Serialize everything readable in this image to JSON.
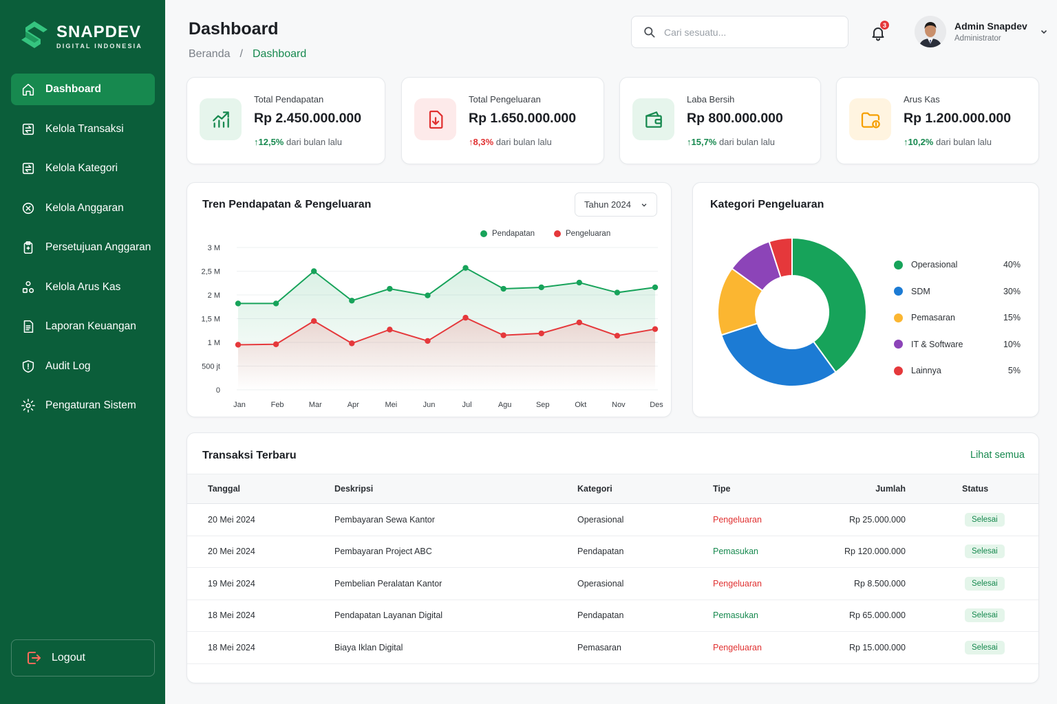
{
  "brand": {
    "name": "SNAPDEV",
    "tagline": "DIGITAL INDONESIA"
  },
  "sidebar": {
    "items": [
      {
        "label": "Dashboard",
        "icon": "home-icon",
        "active": true
      },
      {
        "label": "Kelola Transaksi",
        "icon": "transaction-icon"
      },
      {
        "label": "Kelola Kategori",
        "icon": "category-icon"
      },
      {
        "label": "Kelola Anggaran",
        "icon": "budget-icon"
      },
      {
        "label": "Persetujuan Anggaran",
        "icon": "approval-clipboard-icon"
      },
      {
        "label": "Kelola Arus Kas",
        "icon": "cashflow-shapes-icon"
      },
      {
        "label": "Laporan Keuangan",
        "icon": "report-icon"
      },
      {
        "label": "Audit Log",
        "icon": "shield-icon"
      },
      {
        "label": "Pengaturan Sistem",
        "icon": "gear-icon"
      }
    ],
    "logout_label": "Logout"
  },
  "header": {
    "title": "Dashboard",
    "breadcrumb": [
      "Beranda",
      "/",
      "Dashboard"
    ],
    "search_placeholder": "Cari sesuatu...",
    "notification_count": "3",
    "user_name": "Admin Snapdev",
    "user_role": "Administrator"
  },
  "stats": [
    {
      "label": "Total Pendapatan",
      "value": "Rp 2.450.000.000",
      "change": "12,5%",
      "suffix": "dari bulan lalu",
      "color": "#17894f",
      "bg": "#e6f5ec",
      "icon": "growth-chart-icon"
    },
    {
      "label": "Total Pengeluaran",
      "value": "Rp 1.650.000.000",
      "change": "8,3%",
      "suffix": "dari bulan lalu",
      "color": "#e03131",
      "bg": "#fdeaea",
      "icon": "download-doc-icon"
    },
    {
      "label": "Laba Bersih",
      "value": "Rp 800.000.000",
      "change": "15,7%",
      "suffix": "dari bulan lalu",
      "color": "#17894f",
      "bg": "#e6f5ec",
      "icon": "wallet-icon"
    },
    {
      "label": "Arus Kas",
      "value": "Rp 1.200.000.000",
      "change": "10,2%",
      "suffix": "dari bulan lalu",
      "color": "#f59f00",
      "bg": "#fff4e0",
      "icon": "cash-folder-icon"
    }
  ],
  "trend": {
    "title": "Tren Pendapatan & Pengeluaran",
    "year_select": "Tahun 2024"
  },
  "chart_data": [
    {
      "type": "area",
      "title": "Tren Pendapatan & Pengeluaran",
      "categories": [
        "Jan",
        "Feb",
        "Mar",
        "Apr",
        "Mei",
        "Jun",
        "Jul",
        "Agu",
        "Sep",
        "Okt",
        "Nov",
        "Des"
      ],
      "y_ticks": [
        "0",
        "500 jt",
        "1 M",
        "1,5 M",
        "2 M",
        "2,5 M",
        "3 M"
      ],
      "ylim": [
        0,
        3000000000
      ],
      "grid": true,
      "legend": "top-right",
      "series": [
        {
          "name": "Pendapatan",
          "color": "#17a35a",
          "values": [
            1820000000,
            1820000000,
            2500000000,
            1880000000,
            2130000000,
            1990000000,
            2570000000,
            2130000000,
            2160000000,
            2260000000,
            2050000000,
            2160000000
          ]
        },
        {
          "name": "Pengeluaran",
          "color": "#e5383b",
          "values": [
            950000000,
            960000000,
            1450000000,
            980000000,
            1270000000,
            1030000000,
            1520000000,
            1150000000,
            1190000000,
            1420000000,
            1140000000,
            1280000000
          ]
        }
      ]
    },
    {
      "type": "pie",
      "title": "Kategori Pengeluaran",
      "donut": true,
      "legend": "right",
      "slices": [
        {
          "name": "Operasional",
          "value": 40,
          "label": "40%",
          "color": "#17a35a"
        },
        {
          "name": "SDM",
          "value": 30,
          "label": "30%",
          "color": "#1c7bd4"
        },
        {
          "name": "Pemasaran",
          "value": 15,
          "label": "15%",
          "color": "#fbb631"
        },
        {
          "name": "IT & Software",
          "value": 10,
          "label": "10%",
          "color": "#8c44b8"
        },
        {
          "name": "Lainnya",
          "value": 5,
          "label": "5%",
          "color": "#e5383b"
        }
      ]
    }
  ],
  "transactions": {
    "title": "Transaksi Terbaru",
    "see_all": "Lihat semua",
    "columns": [
      "Tanggal",
      "Deskripsi",
      "Kategori",
      "Tipe",
      "Jumlah",
      "Status"
    ],
    "rows": [
      {
        "date": "20 Mei 2024",
        "desc": "Pembayaran Sewa Kantor",
        "category": "Operasional",
        "type": "Pengeluaran",
        "amount": "Rp 25.000.000",
        "status": "Selesai"
      },
      {
        "date": "20 Mei 2024",
        "desc": "Pembayaran Project ABC",
        "category": "Pendapatan",
        "type": "Pemasukan",
        "amount": "Rp 120.000.000",
        "status": "Selesai"
      },
      {
        "date": "19 Mei 2024",
        "desc": "Pembelian Peralatan Kantor",
        "category": "Operasional",
        "type": "Pengeluaran",
        "amount": "Rp 8.500.000",
        "status": "Selesai"
      },
      {
        "date": "18 Mei 2024",
        "desc": "Pendapatan Layanan Digital",
        "category": "Pendapatan",
        "type": "Pemasukan",
        "amount": "Rp 65.000.000",
        "status": "Selesai"
      },
      {
        "date": "18 Mei 2024",
        "desc": "Biaya Iklan Digital",
        "category": "Pemasaran",
        "type": "Pengeluaran",
        "amount": "Rp 15.000.000",
        "status": "Selesai"
      }
    ]
  }
}
